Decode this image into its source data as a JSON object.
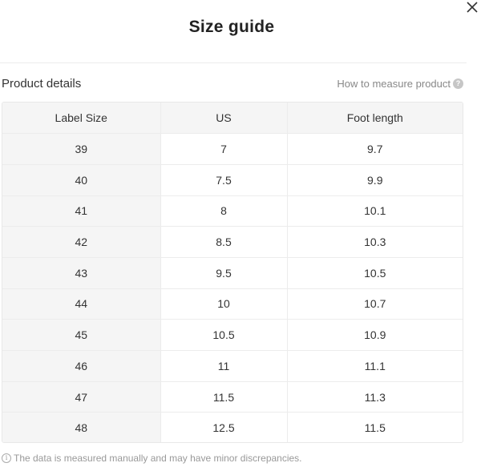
{
  "modal": {
    "title": "Size guide",
    "close_icon": "close-icon"
  },
  "section": {
    "title": "Product details",
    "measure_link": "How to measure product",
    "help_icon": "question-circle-icon"
  },
  "table": {
    "headers": [
      "Label Size",
      "US",
      "Foot length"
    ],
    "rows": [
      [
        "39",
        "7",
        "9.7"
      ],
      [
        "40",
        "7.5",
        "9.9"
      ],
      [
        "41",
        "8",
        "10.1"
      ],
      [
        "42",
        "8.5",
        "10.3"
      ],
      [
        "43",
        "9.5",
        "10.5"
      ],
      [
        "44",
        "10",
        "10.7"
      ],
      [
        "45",
        "10.5",
        "10.9"
      ],
      [
        "46",
        "11",
        "11.1"
      ],
      [
        "47",
        "11.5",
        "11.3"
      ],
      [
        "48",
        "12.5",
        "11.5"
      ]
    ]
  },
  "footnote": {
    "icon": "info-circle-icon",
    "text": "The data is measured manually and may have minor discrepancies."
  }
}
